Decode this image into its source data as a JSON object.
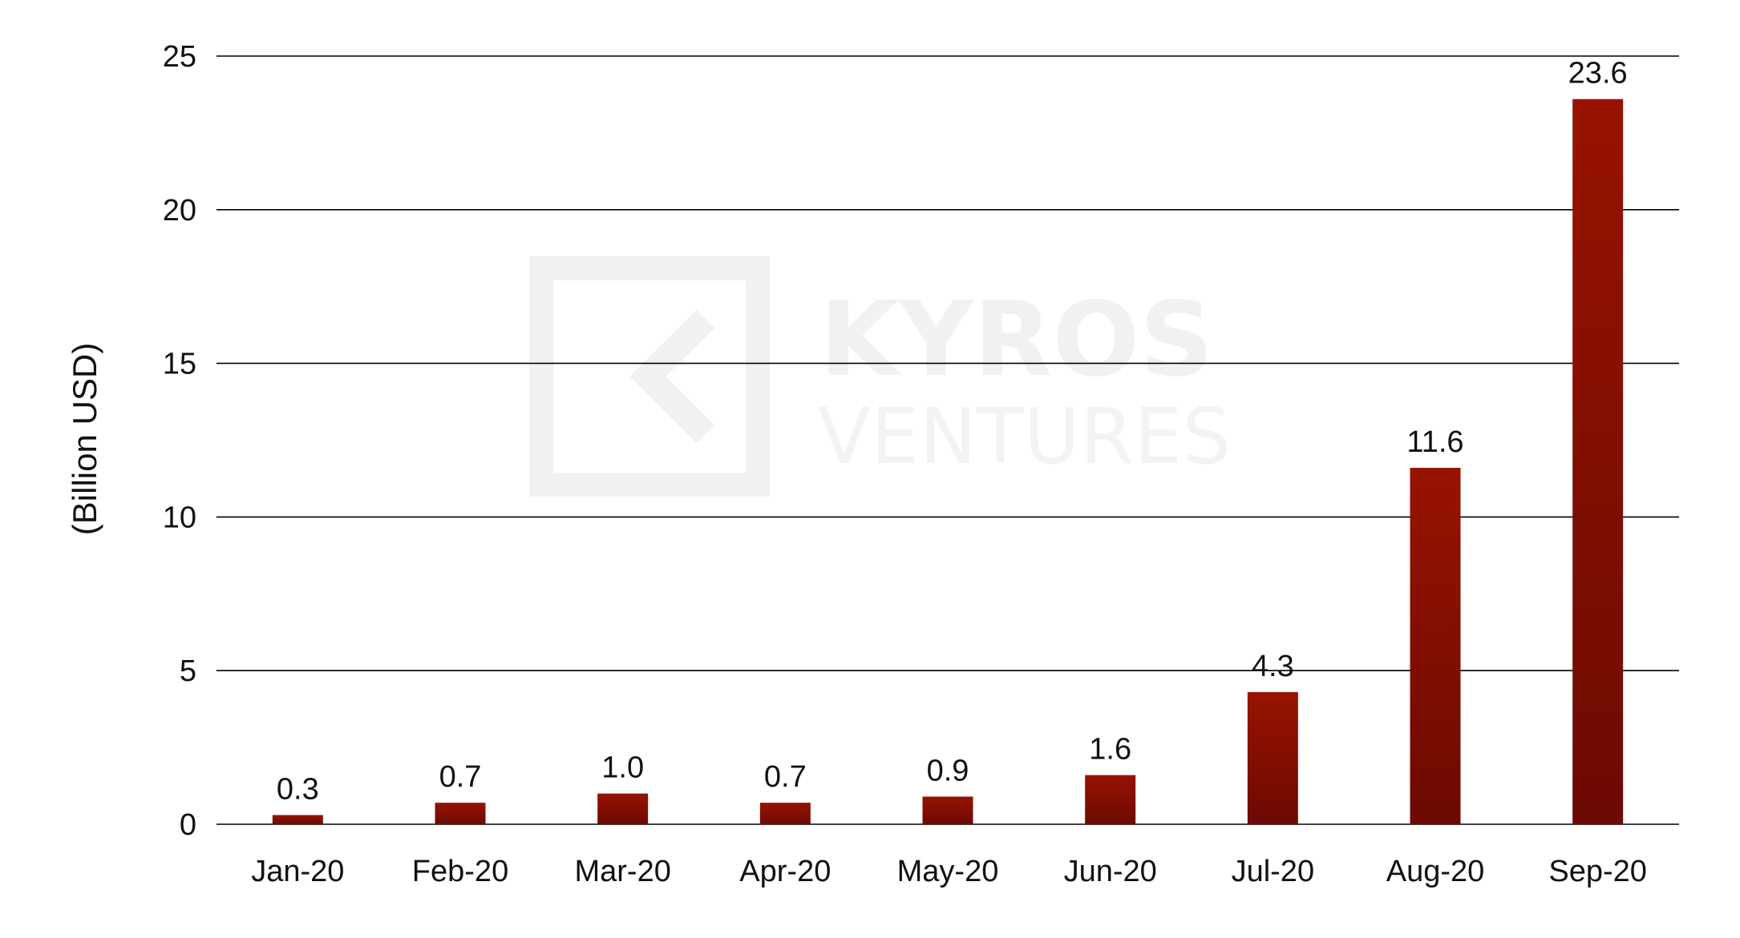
{
  "chart_data": {
    "type": "bar",
    "categories": [
      "Jan-20",
      "Feb-20",
      "Mar-20",
      "Apr-20",
      "May-20",
      "Jun-20",
      "Jul-20",
      "Aug-20",
      "Sep-20"
    ],
    "values": [
      0.3,
      0.7,
      1.0,
      0.7,
      0.9,
      1.6,
      4.3,
      11.6,
      23.6
    ],
    "data_labels": [
      "0.3",
      "0.7",
      "1.0",
      "0.7",
      "0.9",
      "1.6",
      "4.3",
      "11.6",
      "23.6"
    ],
    "title": "",
    "xlabel": "",
    "ylabel": "(Billion USD)",
    "ylim": [
      0,
      25
    ],
    "yticks": [
      "0",
      "5",
      "10",
      "15",
      "20",
      "25"
    ],
    "grid": true,
    "legend": "none",
    "colors": {
      "bar_top": "#971300",
      "bar_bottom": "#6c0a03",
      "gridline": "#000000",
      "text": "#111111"
    }
  },
  "watermark": {
    "line1": "KYROS",
    "line2": "VENTURES"
  }
}
